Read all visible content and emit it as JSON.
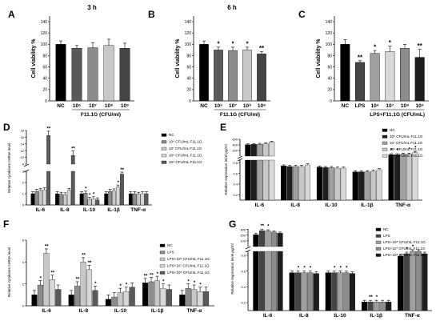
{
  "colors": {
    "c1": "#000000",
    "c2": "#5a5a5a",
    "c3": "#8c8c8c",
    "c4": "#c8c8c8",
    "c5": "#444444",
    "c6": "#1e1e1e",
    "c7": "#a0a0a0",
    "c8": "#d8d8d8"
  },
  "chart_data": [
    {
      "panel": "A",
      "type": "bar",
      "title": "3 h",
      "ylabel": "Cell viability %",
      "ylim": [
        0,
        150
      ],
      "yticks": [
        "0",
        "20",
        "40",
        "60",
        "80",
        "100",
        "120",
        "140"
      ],
      "categories": [
        "NC",
        "10⁶",
        "10⁷",
        "10⁸",
        "10⁹"
      ],
      "values": [
        100,
        93,
        94,
        98,
        93
      ],
      "errors": [
        6,
        5,
        9,
        11,
        9
      ],
      "stars": [
        "",
        "",
        "",
        "",
        ""
      ],
      "group_label": "F11.1G (CFU/ml)"
    },
    {
      "panel": "B",
      "type": "bar",
      "title": "6 h",
      "ylabel": "Cell viability %",
      "ylim": [
        0,
        150
      ],
      "yticks": [
        "0",
        "20",
        "40",
        "60",
        "80",
        "100",
        "120",
        "140"
      ],
      "categories": [
        "NC",
        "10⁶",
        "10⁷",
        "10⁸",
        "10⁹"
      ],
      "values": [
        100,
        90,
        89,
        90,
        83
      ],
      "errors": [
        6,
        5,
        6,
        5,
        4
      ],
      "stars": [
        "",
        "*",
        "*",
        "*",
        "**"
      ],
      "group_label": "F11.1G (CFU/ml)"
    },
    {
      "panel": "C",
      "type": "bar",
      "title": "",
      "ylabel": "Cell viability %",
      "ylim": [
        0,
        150
      ],
      "yticks": [
        "0",
        "20",
        "40",
        "60",
        "80",
        "100",
        "120",
        "140"
      ],
      "categories": [
        "NC",
        "LPS",
        "10⁶",
        "10⁷",
        "10⁸",
        "10⁹"
      ],
      "values": [
        100,
        68,
        84,
        87,
        93,
        77
      ],
      "errors": [
        8,
        3,
        5,
        10,
        7,
        14
      ],
      "stars": [
        "",
        "**",
        "*",
        "*",
        "",
        "**"
      ],
      "group_label": "LPS+F11.1G (CFU/mL)"
    },
    {
      "panel": "D",
      "type": "bar",
      "ylabel": "Relative cytokines mRNA level",
      "yticks_low": [
        "0",
        "1",
        "2",
        "3"
      ],
      "yticks_high": [
        "8",
        "10",
        "12",
        "14",
        "16",
        "18"
      ],
      "groups": [
        "IL-6",
        "IL-8",
        "IL-10",
        "IL-1β",
        "TNF-α"
      ],
      "series": [
        {
          "name": "NC",
          "values": [
            1.0,
            1.0,
            1.0,
            1.0,
            1.0
          ]
        },
        {
          "name": "10⁶ CFU/mL F11.1G",
          "values": [
            1.2,
            0.95,
            1.05,
            1.2,
            1.0
          ]
        },
        {
          "name": "10⁷ CFU/mL F11.1G",
          "values": [
            1.3,
            0.9,
            0.5,
            1.25,
            0.95
          ]
        },
        {
          "name": "10⁸ CFU/mL F11.1G",
          "values": [
            1.35,
            1.3,
            0.55,
            1.6,
            1.0
          ]
        },
        {
          "name": "10⁹ CFU/mL F11.1G",
          "values": [
            16.5,
            10.6,
            0.45,
            2.75,
            1.0
          ]
        }
      ],
      "stars": [
        [
          "",
          "",
          "",
          "",
          "**"
        ],
        [
          "",
          "",
          "",
          "",
          "**"
        ],
        [
          "",
          "*",
          "*",
          "*",
          ""
        ],
        [
          "",
          "",
          "",
          "*",
          "**"
        ],
        [
          "",
          "",
          "",
          "",
          ""
        ]
      ]
    },
    {
      "panel": "E",
      "type": "bar",
      "ylabel": "Relative expression level pg/ml",
      "yticks_top": [
        "200",
        "400",
        "600"
      ],
      "yticks_bot": [
        "0.2",
        "0.4",
        "0.6",
        "0.8"
      ],
      "groups": [
        "IL-6",
        "IL-8",
        "IL-10",
        "IL-1β",
        "TNF-α"
      ],
      "series": [
        {
          "name": "NC",
          "values": [
            410,
            0.74,
            0.72,
            0.63,
            0.95
          ]
        },
        {
          "name": "10⁶ CFU/mL F11.1G",
          "values": [
            420,
            0.73,
            0.71,
            0.63,
            0.95
          ]
        },
        {
          "name": "10⁷ CFU/mL F11.1G",
          "values": [
            425,
            0.73,
            0.71,
            0.63,
            0.96
          ]
        },
        {
          "name": "10⁸ CFU/mL F11.1G",
          "values": [
            440,
            0.73,
            0.7,
            0.64,
            0.96
          ]
        },
        {
          "name": "10⁹ CFU/mL F11.1G",
          "values": [
            500,
            0.76,
            0.7,
            0.67,
            0.99
          ]
        }
      ],
      "stars": [
        [
          "",
          "",
          "",
          "",
          "*"
        ],
        [
          "",
          "",
          "",
          "",
          "*"
        ],
        [
          "",
          "",
          "",
          "",
          ""
        ],
        [
          "",
          "",
          "",
          "",
          "*"
        ],
        [
          "",
          "",
          "",
          "",
          "*"
        ]
      ]
    },
    {
      "panel": "F",
      "type": "bar",
      "ylabel": "Relative cytokines mRNA level",
      "yticks": [
        "0",
        "2",
        "4",
        "6"
      ],
      "ylim": [
        0,
        6
      ],
      "groups": [
        "IL-6",
        "IL-8",
        "IL-10",
        "IL-1β",
        "TNF-α"
      ],
      "series": [
        {
          "name": "NC",
          "values": [
            1.0,
            1.0,
            0.6,
            2.1,
            1.0
          ]
        },
        {
          "name": "LPS",
          "values": [
            1.9,
            1.8,
            0.8,
            2.2,
            1.6
          ]
        },
        {
          "name": "LPS+10⁶ CFU/mL F11.1G",
          "values": [
            4.8,
            4.0,
            1.2,
            2.3,
            1.5
          ]
        },
        {
          "name": "LPS+10⁷ CFU/mL F11.1G",
          "values": [
            2.4,
            3.3,
            1.3,
            1.6,
            1.3
          ]
        },
        {
          "name": "LPS+10⁸ CFU/mL F11.1G",
          "values": [
            1.5,
            1.4,
            1.7,
            1.5,
            1.3
          ]
        }
      ],
      "stars": [
        [
          "",
          "",
          "",
          "**",
          ""
        ],
        [
          "*",
          "**",
          "",
          "**",
          "*"
        ],
        [
          "**",
          "**",
          "*",
          "*",
          "*"
        ],
        [
          "**",
          "**",
          "*",
          "*",
          "*"
        ],
        [
          "",
          "*",
          "",
          "",
          ""
        ]
      ]
    },
    {
      "panel": "G",
      "type": "bar",
      "ylabel": "Relative expression level pg/ml",
      "yticks_top": [
        "100",
        "200",
        "300"
      ],
      "yticks_bot": [
        "0.2",
        "0.4",
        "0.6",
        "0.8"
      ],
      "groups": [
        "IL-6",
        "IL-8",
        "IL-10",
        "IL-1β",
        "TNF-α"
      ],
      "series": [
        {
          "name": "NC",
          "values": [
            210,
            0.58,
            0.58,
            0.21,
            0.79
          ]
        },
        {
          "name": "LPS",
          "values": [
            280,
            0.58,
            0.58,
            0.21,
            0.82
          ]
        },
        {
          "name": "LPS+10⁶ CFU/mL F11.1G",
          "values": [
            275,
            0.58,
            0.58,
            0.21,
            0.85
          ]
        },
        {
          "name": "LPS+10⁷ CFU/mL F11.1G",
          "values": [
            255,
            0.58,
            0.58,
            0.21,
            0.85
          ]
        },
        {
          "name": "LPS+10⁸ CFU/mL F11.1G",
          "values": [
            235,
            0.57,
            0.57,
            0.21,
            0.82
          ]
        }
      ],
      "stars": [
        [
          "",
          "",
          "",
          "",
          ""
        ],
        [
          "**",
          "*",
          "*",
          "**",
          "*"
        ],
        [
          "*",
          "*",
          "*",
          "*",
          "*"
        ],
        [
          "",
          "*",
          "*",
          "",
          ""
        ],
        [
          "",
          "",
          "",
          "",
          ""
        ]
      ]
    }
  ]
}
